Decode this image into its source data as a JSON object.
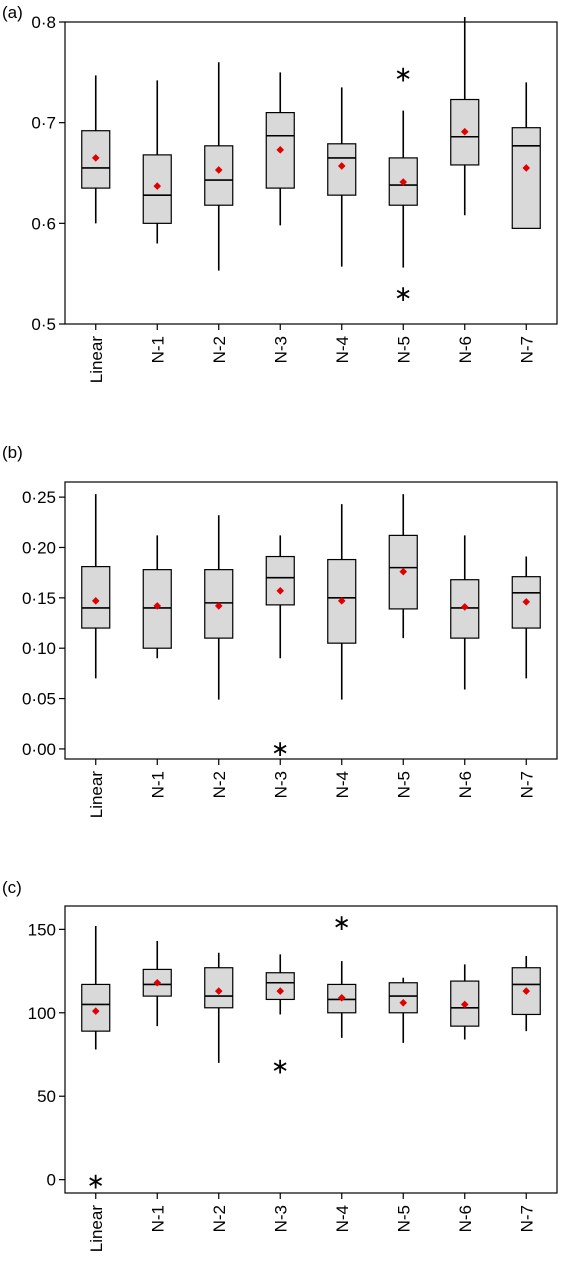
{
  "chart_data": [
    {
      "type": "box",
      "panel_label": "(a)",
      "categories": [
        "Linear",
        "N-1",
        "N-2",
        "N-3",
        "N-4",
        "N-5",
        "N-6",
        "N-7"
      ],
      "ylim": [
        0.5,
        0.8
      ],
      "yticks": [
        0.5,
        0.6,
        0.7,
        0.8
      ],
      "ytick_labels": [
        "0·5",
        "0·6",
        "0·7",
        "0·8"
      ],
      "boxes": [
        {
          "whisker_low": 0.6,
          "q1": 0.635,
          "median": 0.655,
          "q3": 0.692,
          "whisker_high": 0.747,
          "mean": 0.665,
          "outliers": []
        },
        {
          "whisker_low": 0.58,
          "q1": 0.6,
          "median": 0.628,
          "q3": 0.668,
          "whisker_high": 0.742,
          "mean": 0.637,
          "outliers": []
        },
        {
          "whisker_low": 0.553,
          "q1": 0.618,
          "median": 0.643,
          "q3": 0.677,
          "whisker_high": 0.76,
          "mean": 0.653,
          "outliers": []
        },
        {
          "whisker_low": 0.598,
          "q1": 0.635,
          "median": 0.687,
          "q3": 0.71,
          "whisker_high": 0.75,
          "mean": 0.673,
          "outliers": []
        },
        {
          "whisker_low": 0.557,
          "q1": 0.628,
          "median": 0.665,
          "q3": 0.679,
          "whisker_high": 0.735,
          "mean": 0.657,
          "outliers": []
        },
        {
          "whisker_low": 0.556,
          "q1": 0.618,
          "median": 0.638,
          "q3": 0.665,
          "whisker_high": 0.712,
          "mean": 0.641,
          "outliers": [
            0.75,
            0.532
          ]
        },
        {
          "whisker_low": 0.608,
          "q1": 0.658,
          "median": 0.686,
          "q3": 0.723,
          "whisker_high": 0.805,
          "mean": 0.691,
          "outliers": []
        },
        {
          "whisker_low": 0.595,
          "q1": 0.595,
          "median": 0.677,
          "q3": 0.695,
          "whisker_high": 0.74,
          "mean": 0.655,
          "outliers": []
        }
      ]
    },
    {
      "type": "box",
      "panel_label": "(b)",
      "categories": [
        "Linear",
        "N-1",
        "N-2",
        "N-3",
        "N-4",
        "N-5",
        "N-6",
        "N-7"
      ],
      "ylim": [
        -0.01,
        0.265
      ],
      "yticks": [
        0.0,
        0.05,
        0.1,
        0.15,
        0.2,
        0.25
      ],
      "ytick_labels": [
        "0·00",
        "0·05",
        "0·10",
        "0·15",
        "0·20",
        "0·25"
      ],
      "boxes": [
        {
          "whisker_low": 0.07,
          "q1": 0.12,
          "median": 0.14,
          "q3": 0.181,
          "whisker_high": 0.253,
          "mean": 0.147,
          "outliers": []
        },
        {
          "whisker_low": 0.09,
          "q1": 0.1,
          "median": 0.14,
          "q3": 0.178,
          "whisker_high": 0.212,
          "mean": 0.142,
          "outliers": []
        },
        {
          "whisker_low": 0.049,
          "q1": 0.11,
          "median": 0.145,
          "q3": 0.178,
          "whisker_high": 0.232,
          "mean": 0.142,
          "outliers": []
        },
        {
          "whisker_low": 0.09,
          "q1": 0.143,
          "median": 0.17,
          "q3": 0.191,
          "whisker_high": 0.212,
          "mean": 0.157,
          "outliers": [
            0.002
          ]
        },
        {
          "whisker_low": 0.049,
          "q1": 0.105,
          "median": 0.15,
          "q3": 0.188,
          "whisker_high": 0.243,
          "mean": 0.147,
          "outliers": []
        },
        {
          "whisker_low": 0.11,
          "q1": 0.139,
          "median": 0.18,
          "q3": 0.212,
          "whisker_high": 0.253,
          "mean": 0.176,
          "outliers": []
        },
        {
          "whisker_low": 0.059,
          "q1": 0.11,
          "median": 0.14,
          "q3": 0.168,
          "whisker_high": 0.212,
          "mean": 0.141,
          "outliers": []
        },
        {
          "whisker_low": 0.07,
          "q1": 0.12,
          "median": 0.155,
          "q3": 0.171,
          "whisker_high": 0.191,
          "mean": 0.146,
          "outliers": []
        }
      ]
    },
    {
      "type": "box",
      "panel_label": "(c)",
      "categories": [
        "Linear",
        "N-1",
        "N-2",
        "N-3",
        "N-4",
        "N-5",
        "N-6",
        "N-7"
      ],
      "ylim": [
        -8,
        164
      ],
      "yticks": [
        0,
        50,
        100,
        150
      ],
      "ytick_labels": [
        "0",
        "50",
        "100",
        "150"
      ],
      "boxes": [
        {
          "whisker_low": 78,
          "q1": 89,
          "median": 105,
          "q3": 117,
          "whisker_high": 152,
          "mean": 101,
          "outliers": [
            0
          ]
        },
        {
          "whisker_low": 92,
          "q1": 110,
          "median": 117,
          "q3": 126,
          "whisker_high": 143,
          "mean": 118,
          "outliers": []
        },
        {
          "whisker_low": 70,
          "q1": 103,
          "median": 110,
          "q3": 127,
          "whisker_high": 136,
          "mean": 113,
          "outliers": []
        },
        {
          "whisker_low": 99,
          "q1": 108,
          "median": 118,
          "q3": 124,
          "whisker_high": 135,
          "mean": 113,
          "outliers": [
            69
          ]
        },
        {
          "whisker_low": 85,
          "q1": 100,
          "median": 108,
          "q3": 117,
          "whisker_high": 131,
          "mean": 109,
          "outliers": [
            155
          ]
        },
        {
          "whisker_low": 82,
          "q1": 100,
          "median": 110,
          "q3": 118,
          "whisker_high": 121,
          "mean": 106,
          "outliers": []
        },
        {
          "whisker_low": 84,
          "q1": 92,
          "median": 103,
          "q3": 119,
          "whisker_high": 129,
          "mean": 105,
          "outliers": []
        },
        {
          "whisker_low": 89,
          "q1": 99,
          "median": 117,
          "q3": 127,
          "whisker_high": 134,
          "mean": 113,
          "outliers": []
        }
      ]
    }
  ],
  "colors": {
    "box_fill": "#d9d9d9",
    "mean_marker": "#e00000",
    "line": "#000000"
  },
  "outlier_glyph": "∗"
}
